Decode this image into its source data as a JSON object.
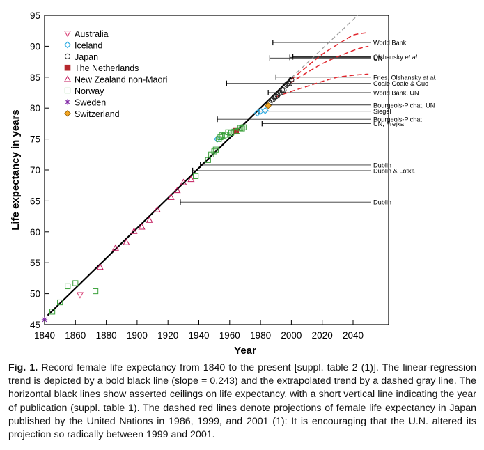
{
  "chart_data": {
    "type": "scatter",
    "title": "",
    "xlabel": "Year",
    "ylabel": "Life expectancy in years",
    "xlim": [
      1840,
      2050
    ],
    "ylim": [
      45,
      95
    ],
    "xticks": [
      1840,
      1860,
      1880,
      1900,
      1920,
      1940,
      1960,
      1980,
      2000,
      2020,
      2040
    ],
    "yticks": [
      45,
      50,
      55,
      60,
      65,
      70,
      75,
      80,
      85,
      90,
      95
    ],
    "grid": false,
    "legend_position": "top-left",
    "series": [
      {
        "name": "Australia",
        "marker": "triangle-down",
        "color": "#d6336c",
        "points": [
          [
            1863,
            49.8
          ]
        ]
      },
      {
        "name": "Iceland",
        "marker": "diamond",
        "color": "#29a9e1",
        "points": [
          [
            1952,
            75.0
          ],
          [
            1978,
            79.2
          ],
          [
            1980,
            79.5
          ],
          [
            1983,
            79.6
          ]
        ]
      },
      {
        "name": "Japan",
        "marker": "circle",
        "color": "#222222",
        "points": [
          [
            1986,
            80.9
          ],
          [
            1987,
            81.3
          ],
          [
            1988,
            81.4
          ],
          [
            1989,
            81.8
          ],
          [
            1990,
            81.9
          ],
          [
            1991,
            82.1
          ],
          [
            1992,
            82.4
          ],
          [
            1993,
            82.5
          ],
          [
            1994,
            82.9
          ],
          [
            1995,
            82.9
          ],
          [
            1996,
            83.6
          ],
          [
            1997,
            83.8
          ],
          [
            1998,
            84.0
          ],
          [
            1999,
            84.0
          ],
          [
            2000,
            84.6
          ]
        ]
      },
      {
        "name": "The Netherlands",
        "marker": "square-filled",
        "color": "#b5272d",
        "points": [
          [
            1964,
            76.3
          ]
        ]
      },
      {
        "name": "New Zealand non-Maori",
        "marker": "triangle-up",
        "color": "#c2185b",
        "points": [
          [
            1876,
            54.3
          ],
          [
            1886,
            57.4
          ],
          [
            1893,
            58.3
          ],
          [
            1898,
            60.1
          ],
          [
            1903,
            60.8
          ],
          [
            1908,
            61.9
          ],
          [
            1913,
            63.6
          ],
          [
            1922,
            65.6
          ],
          [
            1926,
            66.7
          ],
          [
            1930,
            68.0
          ],
          [
            1935,
            68.5
          ]
        ]
      },
      {
        "name": "Norway",
        "marker": "square",
        "color": "#3aa13a",
        "points": [
          [
            1845,
            47.1
          ],
          [
            1850,
            48.6
          ],
          [
            1855,
            51.2
          ],
          [
            1860,
            51.7
          ],
          [
            1873,
            50.4
          ],
          [
            1938,
            69.0
          ],
          [
            1946,
            71.6
          ],
          [
            1948,
            72.5
          ],
          [
            1950,
            73.0
          ],
          [
            1951,
            73.3
          ],
          [
            1953,
            75.0
          ],
          [
            1954,
            75.3
          ],
          [
            1955,
            75.6
          ],
          [
            1956,
            75.5
          ],
          [
            1957,
            75.7
          ],
          [
            1958,
            75.7
          ],
          [
            1959,
            76.1
          ],
          [
            1961,
            76.0
          ],
          [
            1963,
            76.2
          ],
          [
            1965,
            76.3
          ],
          [
            1967,
            76.8
          ],
          [
            1968,
            76.7
          ],
          [
            1969,
            76.9
          ]
        ]
      },
      {
        "name": "Sweden",
        "marker": "star",
        "color": "#7b1fa2",
        "points": [
          [
            1840,
            45.8
          ]
        ]
      },
      {
        "name": "Switzerland",
        "marker": "diamond-filled",
        "color": "#f5a623",
        "points": [
          [
            1985,
            80.4
          ]
        ]
      }
    ],
    "regression_line": {
      "from": [
        1842,
        46.5
      ],
      "to": [
        2000,
        84.9
      ],
      "slope": 0.243
    },
    "extrapolated_trend": {
      "from": [
        2000,
        84.9
      ],
      "to": [
        2043,
        95.0
      ]
    },
    "ceilings": [
      {
        "label": "UN",
        "italic_part": "",
        "year": 1999,
        "value": 88.2
      },
      {
        "label": "World Bank",
        "italic_part": "",
        "year": 1988,
        "value": 90.6
      },
      {
        "label": "Olshansky ",
        "italic_part": "et al.",
        "year": 2001,
        "value": 88.3
      },
      {
        "label": "UN",
        "italic_part": "",
        "year": 1986,
        "value": 88.1
      },
      {
        "label": "Fries, Olshansky ",
        "italic_part": "et al.",
        "year": 1990,
        "value": 85.0
      },
      {
        "label": "Coale   Coale & Guo",
        "italic_part": "",
        "year": 1958,
        "value": 84.0
      },
      {
        "label": "World Bank, UN",
        "italic_part": "",
        "year": 1985,
        "value": 82.5
      },
      {
        "label": "Bourgeois-Pichat, UN",
        "italic_part": "",
        "year": 1984,
        "value": 80.5
      },
      {
        "label": "Siegel",
        "italic_part": "",
        "year": 1979,
        "value": 79.5
      },
      {
        "label": "Bourgeois-Pichat",
        "italic_part": "",
        "year": 1952,
        "value": 78.2
      },
      {
        "label": "UN, Frejka",
        "italic_part": "",
        "year": 1981,
        "value": 77.5
      },
      {
        "label": "Dublin",
        "italic_part": "",
        "year": 1941,
        "value": 70.8
      },
      {
        "label": "Dublin & Lotka",
        "italic_part": "",
        "year": 1936,
        "value": 69.9
      },
      {
        "label": "Dublin",
        "italic_part": "",
        "year": 1928,
        "value": 64.8
      }
    ],
    "un_projections": [
      {
        "points": [
          [
            1990,
            81.8
          ],
          [
            2010,
            83.5
          ],
          [
            2030,
            85.0
          ],
          [
            2050,
            85.5
          ]
        ]
      },
      {
        "points": [
          [
            1999,
            84.0
          ],
          [
            2020,
            87.2
          ],
          [
            2040,
            89.3
          ],
          [
            2050,
            90.0
          ]
        ]
      },
      {
        "points": [
          [
            2000,
            84.6
          ],
          [
            2020,
            88.7
          ],
          [
            2040,
            91.8
          ],
          [
            2050,
            92.2
          ]
        ]
      }
    ]
  },
  "caption": {
    "fig_label": "Fig. 1.",
    "text": " Record female life expectancy from 1840 to the present [suppl. table 2 (1)]. The linear-regression trend is depicted by a bold black line (slope = 0.243) and the extrapolated trend by a dashed gray line. The horizontal black lines show asserted ceilings on life expectancy, with a short vertical line indicating the year of publication (suppl. table 1). The dashed red lines denote projections of female life expectancy in Japan published by the United Nations in 1986, 1999, and 2001 (1): It is encouraging that the U.N. altered its projection so radically between 1999 and 2001."
  }
}
